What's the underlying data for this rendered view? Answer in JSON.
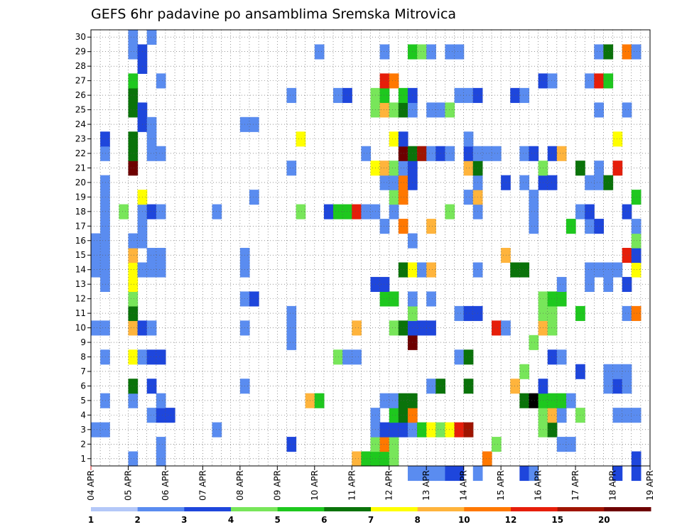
{
  "chart_data": {
    "type": "heatmap",
    "title": "GEFS 6hr padavine po ansamblima Sremska Mitrovica",
    "x_tick_labels": [
      "04 APR",
      "05 APR",
      "06 APR",
      "07 APR",
      "08 APR",
      "09 APR",
      "10 APR",
      "11 APR",
      "12 APR",
      "13 APR",
      "14 APR",
      "15 APR",
      "16 APR",
      "17 APR",
      "18 APR",
      "19 APR"
    ],
    "y_tick_labels": [
      "1",
      "2",
      "3",
      "4",
      "5",
      "6",
      "7",
      "8",
      "9",
      "10",
      "11",
      "12",
      "13",
      "14",
      "15",
      "16",
      "17",
      "18",
      "19",
      "20",
      "21",
      "22",
      "23",
      "24",
      "25",
      "26",
      "27",
      "28",
      "29",
      "30"
    ],
    "xlim": [
      0,
      60
    ],
    "ylim": [
      0.5,
      30.5
    ],
    "grid": true,
    "colorbar": {
      "labels": [
        "1",
        "2",
        "3",
        "4",
        "5",
        "6",
        "7",
        "8",
        "10",
        "12",
        "15",
        "20"
      ],
      "colors": [
        "#b4c8f8",
        "#5a8cf0",
        "#1e46dc",
        "#78e65a",
        "#1ec81e",
        "#0a730a",
        "#ffff00",
        "#ffb43c",
        "#ff7800",
        "#e61e0a",
        "#a01400",
        "#6e0000"
      ]
    },
    "cells": [
      [
        0,
        3,
        1
      ],
      [
        1,
        3,
        1
      ],
      [
        0,
        10,
        1
      ],
      [
        1,
        10,
        1
      ],
      [
        0,
        14,
        1
      ],
      [
        1,
        14,
        1
      ],
      [
        0,
        15,
        1
      ],
      [
        1,
        15,
        1
      ],
      [
        0,
        16,
        1
      ],
      [
        1,
        16,
        1
      ],
      [
        1,
        13,
        1
      ],
      [
        1,
        5,
        1
      ],
      [
        1,
        8,
        1
      ],
      [
        1,
        17,
        1
      ],
      [
        1,
        18,
        1
      ],
      [
        1,
        19,
        1
      ],
      [
        1,
        20,
        1
      ],
      [
        1,
        22,
        1
      ],
      [
        1,
        23,
        2
      ],
      [
        3,
        18,
        3
      ],
      [
        4,
        1,
        1
      ],
      [
        4,
        5,
        1
      ],
      [
        4,
        6,
        5
      ],
      [
        4,
        8,
        6
      ],
      [
        4,
        10,
        7
      ],
      [
        4,
        11,
        5
      ],
      [
        4,
        12,
        3
      ],
      [
        4,
        13,
        6
      ],
      [
        4,
        14,
        6
      ],
      [
        4,
        15,
        7
      ],
      [
        4,
        16,
        1
      ],
      [
        4,
        21,
        11
      ],
      [
        4,
        22,
        5
      ],
      [
        4,
        23,
        5
      ],
      [
        4,
        25,
        5
      ],
      [
        4,
        26,
        5
      ],
      [
        4,
        27,
        4
      ],
      [
        4,
        29,
        1
      ],
      [
        4,
        30,
        1
      ],
      [
        5,
        8,
        1
      ],
      [
        5,
        10,
        2
      ],
      [
        5,
        14,
        1
      ],
      [
        5,
        16,
        1
      ],
      [
        5,
        17,
        1
      ],
      [
        5,
        18,
        1
      ],
      [
        5,
        19,
        6
      ],
      [
        5,
        24,
        2
      ],
      [
        5,
        25,
        2
      ],
      [
        5,
        28,
        2
      ],
      [
        5,
        29,
        2
      ],
      [
        6,
        4,
        1
      ],
      [
        6,
        6,
        2
      ],
      [
        6,
        8,
        2
      ],
      [
        6,
        10,
        1
      ],
      [
        6,
        14,
        1
      ],
      [
        6,
        15,
        1
      ],
      [
        6,
        18,
        2
      ],
      [
        6,
        22,
        1
      ],
      [
        6,
        23,
        1
      ],
      [
        6,
        24,
        1
      ],
      [
        6,
        30,
        1
      ],
      [
        7,
        1,
        1
      ],
      [
        7,
        2,
        1
      ],
      [
        7,
        4,
        2
      ],
      [
        7,
        5,
        1
      ],
      [
        7,
        8,
        2
      ],
      [
        7,
        14,
        1
      ],
      [
        7,
        15,
        1
      ],
      [
        7,
        18,
        1
      ],
      [
        7,
        22,
        1
      ],
      [
        7,
        27,
        1
      ],
      [
        8,
        4,
        2
      ],
      [
        13,
        3,
        1
      ],
      [
        13,
        18,
        1
      ],
      [
        16,
        24,
        1
      ],
      [
        17,
        24,
        1
      ],
      [
        16,
        6,
        1
      ],
      [
        16,
        10,
        1
      ],
      [
        16,
        12,
        1
      ],
      [
        16,
        14,
        1
      ],
      [
        16,
        15,
        1
      ],
      [
        17,
        12,
        2
      ],
      [
        17,
        19,
        1
      ],
      [
        21,
        2,
        2
      ],
      [
        21,
        9,
        1
      ],
      [
        21,
        10,
        1
      ],
      [
        21,
        11,
        1
      ],
      [
        21,
        21,
        1
      ],
      [
        21,
        26,
        1
      ],
      [
        22,
        18,
        3
      ],
      [
        22,
        23,
        6
      ],
      [
        23,
        5,
        7
      ],
      [
        24,
        5,
        4
      ],
      [
        24,
        29,
        1
      ],
      [
        25,
        18,
        2
      ],
      [
        26,
        18,
        4
      ],
      [
        27,
        18,
        4
      ],
      [
        28,
        18,
        9
      ],
      [
        26,
        8,
        3
      ],
      [
        27,
        8,
        1
      ],
      [
        28,
        8,
        1
      ],
      [
        26,
        26,
        1
      ],
      [
        27,
        26,
        2
      ],
      [
        28,
        1,
        7
      ],
      [
        28,
        10,
        7
      ],
      [
        29,
        1,
        4
      ],
      [
        29,
        18,
        1
      ],
      [
        29,
        22,
        1
      ],
      [
        30,
        1,
        4
      ],
      [
        30,
        2,
        3
      ],
      [
        30,
        3,
        1
      ],
      [
        30,
        4,
        1
      ],
      [
        30,
        13,
        2
      ],
      [
        30,
        18,
        1
      ],
      [
        30,
        21,
        6
      ],
      [
        30,
        25,
        3
      ],
      [
        30,
        26,
        3
      ],
      [
        31,
        1,
        4
      ],
      [
        31,
        2,
        8
      ],
      [
        31,
        3,
        2
      ],
      [
        31,
        5,
        1
      ],
      [
        31,
        12,
        4
      ],
      [
        31,
        13,
        2
      ],
      [
        31,
        17,
        1
      ],
      [
        31,
        20,
        1
      ],
      [
        31,
        21,
        7
      ],
      [
        31,
        25,
        7
      ],
      [
        31,
        26,
        4
      ],
      [
        31,
        27,
        9
      ],
      [
        31,
        29,
        1
      ],
      [
        32,
        1,
        3
      ],
      [
        32,
        2,
        3
      ],
      [
        32,
        3,
        2
      ],
      [
        32,
        4,
        4
      ],
      [
        32,
        5,
        1
      ],
      [
        32,
        10,
        3
      ],
      [
        32,
        12,
        4
      ],
      [
        32,
        18,
        1
      ],
      [
        32,
        19,
        3
      ],
      [
        32,
        20,
        1
      ],
      [
        32,
        21,
        3
      ],
      [
        32,
        23,
        6
      ],
      [
        32,
        25,
        3
      ],
      [
        32,
        27,
        8
      ],
      [
        33,
        3,
        2
      ],
      [
        33,
        4,
        5
      ],
      [
        33,
        5,
        5
      ],
      [
        33,
        10,
        5
      ],
      [
        33,
        14,
        5
      ],
      [
        33,
        17,
        8
      ],
      [
        33,
        19,
        8
      ],
      [
        33,
        20,
        8
      ],
      [
        33,
        21,
        1
      ],
      [
        33,
        22,
        11
      ],
      [
        33,
        23,
        2
      ],
      [
        33,
        25,
        5
      ],
      [
        33,
        26,
        4
      ],
      [
        34,
        0,
        1
      ],
      [
        34,
        3,
        1
      ],
      [
        34,
        4,
        8
      ],
      [
        34,
        5,
        5
      ],
      [
        34,
        9,
        11
      ],
      [
        34,
        10,
        2
      ],
      [
        34,
        11,
        3
      ],
      [
        34,
        12,
        1
      ],
      [
        34,
        14,
        6
      ],
      [
        34,
        16,
        1
      ],
      [
        34,
        20,
        2
      ],
      [
        34,
        21,
        2
      ],
      [
        34,
        22,
        5
      ],
      [
        34,
        25,
        1
      ],
      [
        34,
        26,
        2
      ],
      [
        34,
        29,
        4
      ],
      [
        35,
        0,
        1
      ],
      [
        35,
        3,
        4
      ],
      [
        35,
        10,
        2
      ],
      [
        35,
        14,
        1
      ],
      [
        35,
        22,
        10
      ],
      [
        35,
        29,
        3
      ],
      [
        36,
        0,
        1
      ],
      [
        36,
        3,
        6
      ],
      [
        36,
        6,
        1
      ],
      [
        36,
        10,
        2
      ],
      [
        36,
        12,
        1
      ],
      [
        36,
        14,
        7
      ],
      [
        36,
        17,
        7
      ],
      [
        36,
        22,
        1
      ],
      [
        36,
        25,
        1
      ],
      [
        36,
        29,
        1
      ],
      [
        37,
        0,
        1
      ],
      [
        37,
        3,
        3
      ],
      [
        37,
        6,
        5
      ],
      [
        37,
        22,
        2
      ],
      [
        37,
        25,
        1
      ],
      [
        38,
        0,
        2
      ],
      [
        38,
        3,
        6
      ],
      [
        38,
        18,
        3
      ],
      [
        38,
        22,
        1
      ],
      [
        38,
        25,
        3
      ],
      [
        38,
        29,
        1
      ],
      [
        39,
        0,
        2
      ],
      [
        39,
        3,
        9
      ],
      [
        39,
        8,
        1
      ],
      [
        39,
        11,
        1
      ],
      [
        39,
        26,
        1
      ],
      [
        39,
        29,
        1
      ],
      [
        40,
        3,
        10
      ],
      [
        40,
        6,
        5
      ],
      [
        40,
        8,
        5
      ],
      [
        40,
        11,
        2
      ],
      [
        40,
        19,
        1
      ],
      [
        40,
        21,
        7
      ],
      [
        40,
        22,
        2
      ],
      [
        40,
        23,
        1
      ],
      [
        40,
        26,
        1
      ],
      [
        41,
        0,
        1
      ],
      [
        41,
        11,
        2
      ],
      [
        41,
        14,
        1
      ],
      [
        41,
        18,
        1
      ],
      [
        41,
        19,
        7
      ],
      [
        41,
        20,
        1
      ],
      [
        41,
        21,
        5
      ],
      [
        41,
        22,
        1
      ],
      [
        41,
        26,
        2
      ],
      [
        42,
        1,
        8
      ],
      [
        42,
        22,
        1
      ],
      [
        43,
        2,
        3
      ],
      [
        43,
        10,
        9
      ],
      [
        43,
        22,
        1
      ],
      [
        44,
        10,
        1
      ],
      [
        44,
        15,
        7
      ],
      [
        44,
        20,
        2
      ],
      [
        45,
        6,
        7
      ],
      [
        45,
        14,
        5
      ],
      [
        45,
        26,
        2
      ],
      [
        46,
        0,
        2
      ],
      [
        46,
        5,
        5
      ],
      [
        46,
        7,
        3
      ],
      [
        46,
        14,
        5
      ],
      [
        46,
        20,
        1
      ],
      [
        46,
        22,
        1
      ],
      [
        46,
        26,
        1
      ],
      [
        47,
        0,
        1
      ],
      [
        47,
        5,
        12
      ],
      [
        47,
        9,
        3
      ],
      [
        47,
        17,
        1
      ],
      [
        47,
        18,
        1
      ],
      [
        47,
        19,
        1
      ],
      [
        47,
        22,
        2
      ],
      [
        48,
        3,
        3
      ],
      [
        48,
        4,
        3
      ],
      [
        48,
        5,
        4
      ],
      [
        48,
        6,
        2
      ],
      [
        48,
        10,
        7
      ],
      [
        48,
        11,
        3
      ],
      [
        48,
        12,
        3
      ],
      [
        48,
        20,
        2
      ],
      [
        48,
        21,
        3
      ],
      [
        48,
        27,
        2
      ],
      [
        49,
        3,
        5
      ],
      [
        49,
        4,
        7
      ],
      [
        49,
        5,
        4
      ],
      [
        49,
        8,
        2
      ],
      [
        49,
        10,
        3
      ],
      [
        49,
        11,
        3
      ],
      [
        49,
        12,
        4
      ],
      [
        49,
        20,
        2
      ],
      [
        49,
        22,
        2
      ],
      [
        49,
        27,
        1
      ],
      [
        50,
        2,
        1
      ],
      [
        50,
        4,
        1
      ],
      [
        50,
        5,
        4
      ],
      [
        50,
        8,
        1
      ],
      [
        50,
        12,
        4
      ],
      [
        50,
        13,
        1
      ],
      [
        50,
        22,
        7
      ],
      [
        51,
        2,
        1
      ],
      [
        51,
        5,
        1
      ],
      [
        51,
        17,
        4
      ],
      [
        52,
        4,
        3
      ],
      [
        52,
        7,
        2
      ],
      [
        52,
        11,
        4
      ],
      [
        52,
        18,
        1
      ],
      [
        52,
        21,
        5
      ],
      [
        53,
        13,
        1
      ],
      [
        53,
        14,
        1
      ],
      [
        53,
        17,
        1
      ],
      [
        53,
        18,
        2
      ],
      [
        53,
        20,
        1
      ],
      [
        53,
        27,
        1
      ],
      [
        54,
        14,
        1
      ],
      [
        54,
        17,
        2
      ],
      [
        54,
        20,
        1
      ],
      [
        54,
        21,
        1
      ],
      [
        54,
        25,
        1
      ],
      [
        54,
        27,
        9
      ],
      [
        54,
        29,
        1
      ],
      [
        55,
        6,
        1
      ],
      [
        55,
        7,
        1
      ],
      [
        55,
        13,
        1
      ],
      [
        55,
        14,
        1
      ],
      [
        55,
        20,
        5
      ],
      [
        55,
        27,
        4
      ],
      [
        55,
        29,
        5
      ],
      [
        56,
        0,
        2
      ],
      [
        56,
        4,
        1
      ],
      [
        56,
        6,
        2
      ],
      [
        56,
        7,
        1
      ],
      [
        56,
        14,
        1
      ],
      [
        56,
        21,
        9
      ],
      [
        56,
        23,
        6
      ],
      [
        57,
        4,
        1
      ],
      [
        57,
        6,
        1
      ],
      [
        57,
        7,
        1
      ],
      [
        57,
        11,
        1
      ],
      [
        57,
        13,
        2
      ],
      [
        57,
        15,
        9
      ],
      [
        57,
        18,
        2
      ],
      [
        57,
        25,
        1
      ],
      [
        57,
        29,
        8
      ],
      [
        58,
        0,
        2
      ],
      [
        58,
        1,
        2
      ],
      [
        58,
        4,
        1
      ],
      [
        58,
        11,
        8
      ],
      [
        58,
        14,
        6
      ],
      [
        58,
        15,
        2
      ],
      [
        58,
        16,
        3
      ],
      [
        58,
        17,
        1
      ],
      [
        58,
        19,
        4
      ],
      [
        58,
        29,
        1
      ]
    ]
  }
}
